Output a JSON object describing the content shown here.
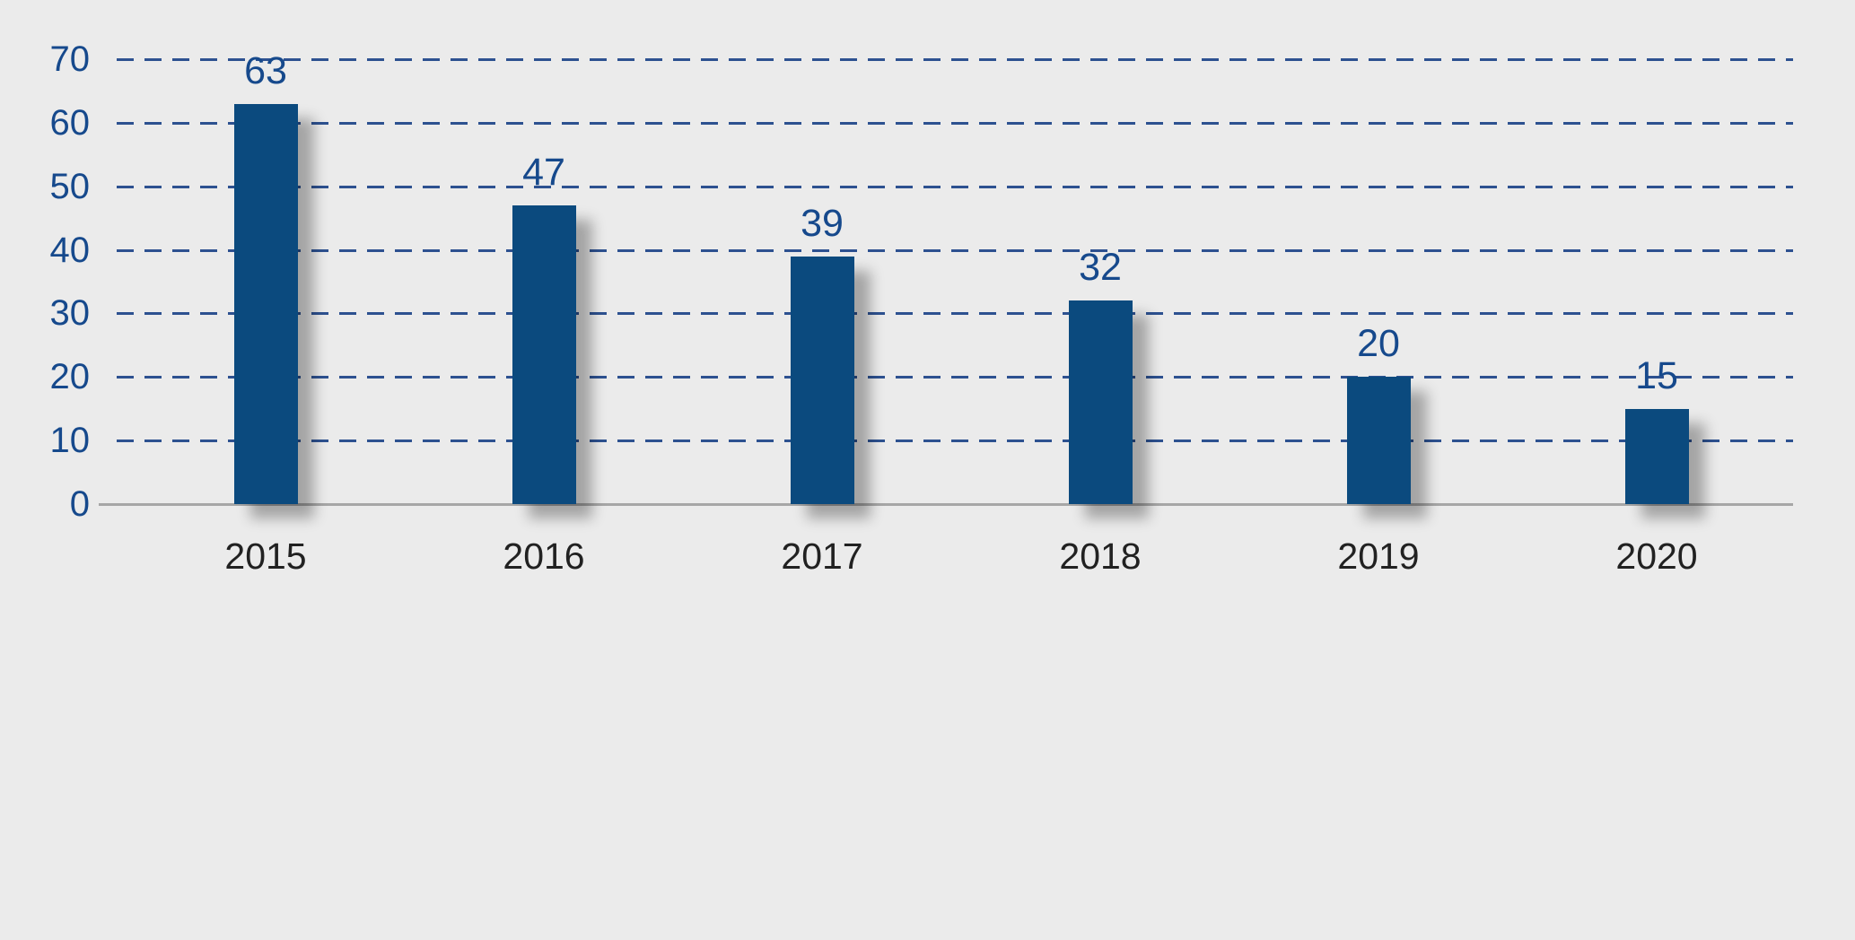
{
  "chart_data": {
    "type": "bar",
    "title": "",
    "xlabel": "",
    "ylabel": "",
    "categories": [
      "2015",
      "2016",
      "2017",
      "2018",
      "2019",
      "2020"
    ],
    "values": [
      63,
      47,
      39,
      32,
      20,
      15
    ],
    "value_labels": [
      "63",
      "47",
      "39",
      "32",
      "20",
      "15"
    ],
    "yticks": [
      0,
      10,
      20,
      30,
      40,
      50,
      60,
      70
    ],
    "ytick_labels": [
      "0",
      "10",
      "20",
      "30",
      "40",
      "50",
      "60",
      "70"
    ],
    "ylim": [
      0,
      70
    ],
    "grid": "horizontal-dashed",
    "legend": "none",
    "colors": {
      "background": "#ebebeb",
      "bar": "#0b4a7e",
      "bar_shadow": "rgba(0,0,0,0.30)",
      "grid_line": "#2d5190",
      "axis_line": "#a6a6a6",
      "ytick_label": "#16498c",
      "value_label": "#16498c",
      "xtick_label": "#212121"
    }
  }
}
